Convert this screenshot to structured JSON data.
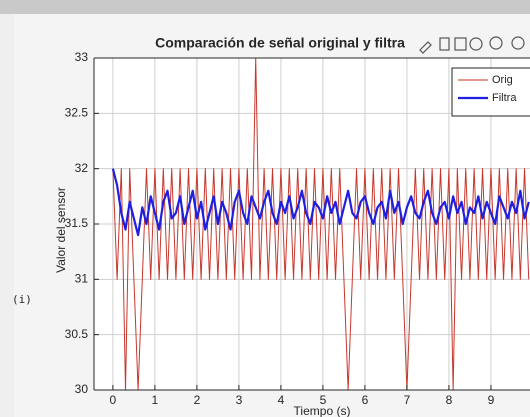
{
  "side_label": "(i)",
  "chart_data": {
    "type": "line",
    "title": "Comparación de señal original y filtra",
    "xlabel": "Tiempo (s)",
    "ylabel": "Valor del sensor",
    "xlim": [
      -0.45,
      9.93
    ],
    "ylim": [
      30,
      33
    ],
    "xticks": [
      0,
      1,
      2,
      3,
      4,
      5,
      6,
      7,
      8,
      9
    ],
    "yticks": [
      30,
      30.5,
      31,
      31.5,
      32,
      32.5,
      33
    ],
    "grid": true,
    "legend": "top-right",
    "x": [
      0,
      0.1,
      0.2,
      0.3,
      0.4,
      0.5,
      0.6,
      0.7,
      0.8,
      0.9,
      1,
      1.1,
      1.2,
      1.3,
      1.4,
      1.5,
      1.6,
      1.7,
      1.8,
      1.9,
      2,
      2.1,
      2.2,
      2.3,
      2.4,
      2.5,
      2.6,
      2.7,
      2.8,
      2.9,
      3,
      3.1,
      3.2,
      3.3,
      3.4,
      3.5,
      3.6,
      3.7,
      3.8,
      3.9,
      4,
      4.1,
      4.2,
      4.3,
      4.4,
      4.5,
      4.6,
      4.7,
      4.8,
      4.9,
      5,
      5.1,
      5.2,
      5.3,
      5.4,
      5.5,
      5.6,
      5.7,
      5.8,
      5.9,
      6,
      6.1,
      6.2,
      6.3,
      6.4,
      6.5,
      6.6,
      6.7,
      6.8,
      6.9,
      7,
      7.1,
      7.2,
      7.3,
      7.4,
      7.5,
      7.6,
      7.7,
      7.8,
      7.9,
      8,
      8.1,
      8.2,
      8.3,
      8.4,
      8.5,
      8.6,
      8.7,
      8.8,
      8.9,
      9,
      9.1,
      9.2,
      9.3,
      9.4,
      9.5,
      9.6,
      9.7,
      9.8,
      9.9
    ],
    "series": [
      {
        "name": "Orig",
        "color": "#c8372d",
        "width": 1,
        "values": [
          32,
          31,
          32,
          30,
          32,
          31,
          30,
          31,
          32,
          31,
          32,
          31,
          32,
          31,
          32,
          31,
          32,
          31,
          32,
          31,
          32,
          31,
          32,
          31,
          32,
          31,
          32,
          31,
          32,
          31,
          32,
          31,
          32,
          31,
          33,
          31,
          32,
          31,
          32,
          31,
          32,
          31,
          32,
          31,
          32,
          31,
          32,
          31,
          32,
          31,
          32,
          31,
          32,
          31,
          32,
          31,
          30,
          31,
          32,
          31,
          32,
          31,
          32,
          31,
          32,
          31,
          32,
          31,
          32,
          31,
          30,
          31,
          32,
          31,
          32,
          31,
          32,
          31,
          32,
          31,
          32,
          30,
          32,
          31,
          32,
          31,
          32,
          31,
          32,
          31,
          32,
          31,
          32,
          31,
          32,
          31,
          32,
          31,
          32,
          31
        ]
      },
      {
        "name": "Filtra",
        "color": "#1f1fe0",
        "width": 2.2,
        "values": [
          32,
          31.85,
          31.6,
          31.45,
          31.7,
          31.55,
          31.4,
          31.65,
          31.5,
          31.75,
          31.6,
          31.45,
          31.7,
          31.8,
          31.55,
          31.6,
          31.75,
          31.5,
          31.65,
          31.8,
          31.55,
          31.7,
          31.45,
          31.6,
          31.75,
          31.5,
          31.7,
          31.6,
          31.45,
          31.7,
          31.8,
          31.6,
          31.5,
          31.75,
          31.65,
          31.55,
          31.7,
          31.8,
          31.6,
          31.5,
          31.7,
          31.6,
          31.75,
          31.55,
          31.65,
          31.8,
          31.6,
          31.5,
          31.7,
          31.65,
          31.55,
          31.75,
          31.6,
          31.7,
          31.5,
          31.65,
          31.8,
          31.6,
          31.55,
          31.7,
          31.75,
          31.6,
          31.5,
          31.65,
          31.7,
          31.55,
          31.8,
          31.6,
          31.7,
          31.5,
          31.65,
          31.75,
          31.6,
          31.55,
          31.7,
          31.8,
          31.6,
          31.5,
          31.65,
          31.7,
          31.55,
          31.75,
          31.6,
          31.7,
          31.5,
          31.65,
          31.6,
          31.75,
          31.55,
          31.7,
          31.6,
          31.5,
          31.75,
          31.65,
          31.55,
          31.7,
          31.6,
          31.8,
          31.55,
          31.7
        ]
      }
    ]
  }
}
